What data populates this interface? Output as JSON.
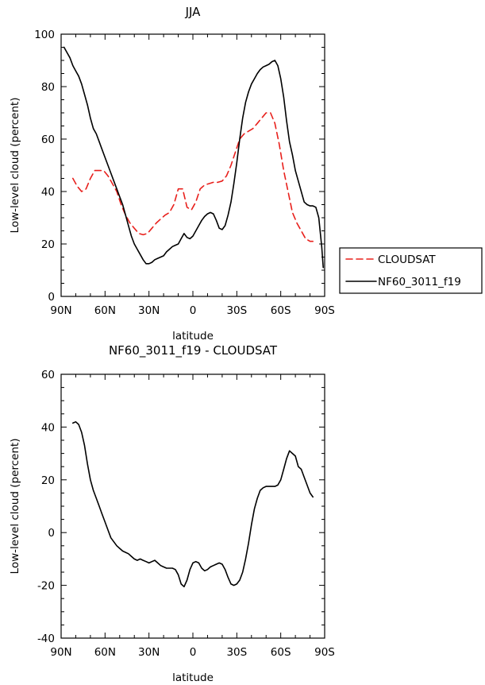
{
  "chart_data": [
    {
      "type": "line",
      "title": "JJA",
      "xlabel": "latitude",
      "ylabel": "Low-level cloud (percent)",
      "xlim": [
        90,
        -90
      ],
      "ylim": [
        0,
        100
      ],
      "x_ticks": [
        90,
        60,
        30,
        0,
        -30,
        -60,
        -90
      ],
      "x_tick_labels": [
        "90N",
        "60N",
        "30N",
        "0",
        "30S",
        "60S",
        "90S"
      ],
      "y_ticks": [
        0,
        20,
        40,
        60,
        80,
        100
      ],
      "y_tick_labels": [
        "0",
        "20",
        "40",
        "60",
        "80",
        "100"
      ],
      "legend_position": "right",
      "series": [
        {
          "name": "CLOUDSAT",
          "color": "#e8201c",
          "dash": "dashed",
          "x": [
            82,
            79,
            76,
            73,
            70,
            67,
            64,
            61,
            58,
            55,
            52,
            49,
            46,
            43,
            40,
            37,
            34,
            31,
            28,
            25,
            22,
            19,
            16,
            13,
            10,
            7,
            4,
            1,
            -2,
            -5,
            -8,
            -11,
            -14,
            -17,
            -20,
            -23,
            -26,
            -29,
            -32,
            -35,
            -38,
            -41,
            -44,
            -47,
            -50,
            -53,
            -56,
            -59,
            -62,
            -65,
            -68,
            -71,
            -74,
            -77,
            -80,
            -82
          ],
          "y": [
            45,
            42,
            40,
            41,
            45,
            48,
            48,
            48,
            46,
            43,
            40,
            35,
            31,
            28,
            26,
            24,
            23.5,
            24,
            26,
            28,
            29.5,
            31,
            32,
            35,
            41,
            41,
            34,
            33,
            36,
            41,
            42.5,
            43,
            43.5,
            43.5,
            44,
            46,
            50,
            55,
            60,
            62,
            63,
            64,
            66,
            68,
            70,
            70,
            66,
            58,
            48,
            40,
            32,
            28,
            25,
            22,
            21,
            21
          ]
        },
        {
          "name": "NF60_3011_f19",
          "color": "#000000",
          "dash": "solid",
          "x": [
            88,
            86,
            84,
            82,
            80,
            78,
            76,
            74,
            72,
            70,
            68,
            66,
            64,
            62,
            60,
            58,
            56,
            54,
            52,
            50,
            48,
            46,
            44,
            42,
            40,
            38,
            36,
            34,
            32,
            30,
            28,
            26,
            24,
            22,
            20,
            18,
            16,
            14,
            12,
            10,
            8,
            6,
            4,
            2,
            0,
            -2,
            -4,
            -6,
            -8,
            -10,
            -12,
            -14,
            -16,
            -18,
            -20,
            -22,
            -24,
            -26,
            -28,
            -30,
            -32,
            -34,
            -36,
            -38,
            -40,
            -42,
            -44,
            -46,
            -48,
            -50,
            -52,
            -54,
            -56,
            -58,
            -60,
            -62,
            -64,
            -66,
            -68,
            -70,
            -72,
            -74,
            -76,
            -78,
            -80,
            -82,
            -84,
            -86,
            -88,
            -89
          ],
          "y": [
            95,
            93,
            91,
            88,
            86,
            84,
            81,
            77,
            73,
            68,
            64,
            62,
            59,
            56,
            53,
            50,
            47,
            44,
            41,
            38,
            35,
            31,
            27,
            23,
            20,
            18,
            16,
            14,
            12.5,
            12.5,
            13,
            14,
            14.5,
            15,
            15.5,
            17,
            18,
            19,
            19.5,
            20,
            22,
            24,
            22.5,
            22,
            23,
            25,
            27,
            29,
            30.5,
            31.5,
            32,
            31.5,
            29,
            26,
            25.5,
            27,
            31,
            36,
            43,
            51,
            60,
            68,
            74,
            78,
            81,
            83,
            85,
            86.5,
            87.5,
            88,
            88.5,
            89.5,
            90,
            88,
            83,
            76,
            67,
            59,
            54,
            48,
            44,
            40,
            36,
            35,
            34.5,
            34.5,
            34,
            30,
            19,
            11
          ]
        }
      ]
    },
    {
      "type": "line",
      "title": "NF60_3011_f19 - CLOUDSAT",
      "xlabel": "latitude",
      "ylabel": "Low-level cloud (percent)",
      "xlim": [
        90,
        -90
      ],
      "ylim": [
        -40,
        60
      ],
      "x_ticks": [
        90,
        60,
        30,
        0,
        -30,
        -60,
        -90
      ],
      "x_tick_labels": [
        "90N",
        "60N",
        "30N",
        "0",
        "30S",
        "60S",
        "90S"
      ],
      "y_ticks": [
        -40,
        -20,
        0,
        20,
        40,
        60
      ],
      "y_tick_labels": [
        "-40",
        "-20",
        "0",
        "20",
        "40",
        "60"
      ],
      "series": [
        {
          "name": "NF60_3011_f19 - CLOUDSAT",
          "color": "#000000",
          "dash": "solid",
          "x": [
            82,
            80,
            78,
            76,
            74,
            72,
            70,
            68,
            66,
            64,
            62,
            60,
            58,
            56,
            54,
            52,
            50,
            48,
            46,
            44,
            42,
            40,
            38,
            36,
            34,
            32,
            30,
            28,
            26,
            24,
            22,
            20,
            18,
            16,
            14,
            12,
            10,
            8,
            6,
            4,
            2,
            0,
            -2,
            -4,
            -6,
            -8,
            -10,
            -12,
            -14,
            -16,
            -18,
            -20,
            -22,
            -24,
            -26,
            -28,
            -30,
            -32,
            -34,
            -36,
            -38,
            -40,
            -42,
            -44,
            -46,
            -48,
            -50,
            -52,
            -54,
            -56,
            -58,
            -60,
            -62,
            -64,
            -66,
            -68,
            -70,
            -72,
            -74,
            -76,
            -78,
            -80,
            -82
          ],
          "y": [
            41.5,
            42,
            41,
            38,
            33,
            26,
            20,
            16,
            13,
            10,
            7,
            4,
            1,
            -2,
            -3.5,
            -5,
            -6,
            -7,
            -7.5,
            -8,
            -9,
            -10,
            -10.5,
            -10,
            -10.5,
            -11,
            -11.5,
            -11,
            -10.5,
            -11.5,
            -12.5,
            -13,
            -13.5,
            -13.5,
            -13.5,
            -14,
            -16,
            -19.5,
            -20.5,
            -18,
            -14,
            -11.5,
            -11,
            -11.5,
            -13.5,
            -14.5,
            -14,
            -13,
            -12.5,
            -12,
            -11.5,
            -12,
            -14,
            -17,
            -19.5,
            -20,
            -19.5,
            -18,
            -15,
            -10,
            -4,
            3,
            9,
            13,
            16,
            17,
            17.5,
            17.5,
            17.5,
            17.5,
            18,
            20,
            24,
            28,
            31,
            30,
            29,
            25,
            24,
            21,
            18,
            15,
            13.5
          ]
        }
      ]
    }
  ]
}
